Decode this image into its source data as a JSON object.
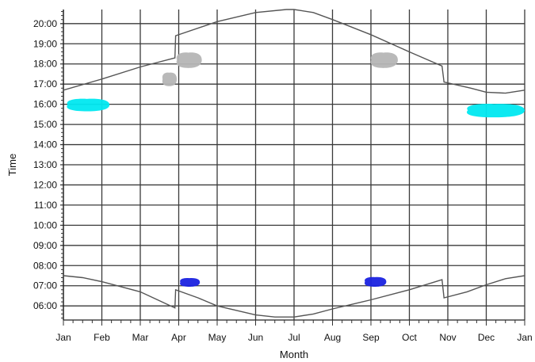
{
  "chart_data": {
    "type": "line",
    "title": "",
    "xlabel": "Month",
    "ylabel": "Time",
    "x_ticks": [
      "Jan",
      "Feb",
      "Mar",
      "Apr",
      "May",
      "Jun",
      "Jul",
      "Aug",
      "Sep",
      "Oct",
      "Nov",
      "Dec",
      "Jan"
    ],
    "y_ticks": [
      "06:00",
      "07:00",
      "08:00",
      "09:00",
      "10:00",
      "11:00",
      "12:00",
      "13:00",
      "14:00",
      "15:00",
      "16:00",
      "17:00",
      "18:00",
      "19:00",
      "20:00"
    ],
    "ylim": [
      5.3,
      20.7
    ],
    "xlim": [
      0,
      12
    ],
    "grid": true,
    "colors": {
      "grid": "#3a3a3a",
      "line": "#555555",
      "gray_blob": "#b5b5b5",
      "cyan_blob": "#00e8f0",
      "blue_blob": "#1a22e0"
    },
    "series": [
      {
        "points": [
          [
            0,
            16.7
          ],
          [
            1,
            17.25
          ],
          [
            2,
            17.85
          ],
          [
            2.9,
            18.3
          ],
          [
            2.92,
            19.4
          ],
          [
            4,
            20.1
          ],
          [
            5,
            20.55
          ],
          [
            5.8,
            20.7
          ],
          [
            6,
            20.7
          ],
          [
            6.5,
            20.55
          ],
          [
            7,
            20.2
          ],
          [
            8,
            19.45
          ],
          [
            9,
            18.6
          ],
          [
            9.85,
            17.9
          ],
          [
            9.9,
            17.1
          ],
          [
            10.6,
            16.8
          ],
          [
            11,
            16.6
          ],
          [
            11.5,
            16.55
          ],
          [
            12,
            16.7
          ]
        ]
      },
      {
        "points": [
          [
            0,
            7.5
          ],
          [
            0.5,
            7.4
          ],
          [
            1,
            7.2
          ],
          [
            2,
            6.7
          ],
          [
            2.9,
            5.9
          ],
          [
            2.92,
            6.8
          ],
          [
            3.5,
            6.4
          ],
          [
            4,
            6.0
          ],
          [
            5,
            5.55
          ],
          [
            5.5,
            5.45
          ],
          [
            6,
            5.45
          ],
          [
            6.5,
            5.6
          ],
          [
            7,
            5.85
          ],
          [
            8,
            6.3
          ],
          [
            9,
            6.8
          ],
          [
            9.85,
            7.3
          ],
          [
            9.9,
            6.4
          ],
          [
            10.5,
            6.7
          ],
          [
            11,
            7.05
          ],
          [
            11.5,
            7.35
          ],
          [
            12,
            7.5
          ]
        ]
      }
    ],
    "blobs": [
      {
        "color": "gray_blob",
        "x": [
          2.9,
          3.6
        ],
        "y": [
          17.8,
          18.6
        ]
      },
      {
        "color": "gray_blob",
        "x": [
          2.55,
          2.95
        ],
        "y": [
          16.9,
          17.6
        ]
      },
      {
        "color": "gray_blob",
        "x": [
          7.95,
          8.7
        ],
        "y": [
          17.8,
          18.6
        ]
      },
      {
        "color": "cyan_blob",
        "x": [
          0.02,
          1.2
        ],
        "y": [
          15.65,
          16.3
        ]
      },
      {
        "color": "cyan_blob",
        "x": [
          10.4,
          12.0
        ],
        "y": [
          15.35,
          16.05
        ]
      },
      {
        "color": "blue_blob",
        "x": [
          3.0,
          3.55
        ],
        "y": [
          6.95,
          7.4
        ]
      },
      {
        "color": "blue_blob",
        "x": [
          7.8,
          8.4
        ],
        "y": [
          6.95,
          7.45
        ]
      }
    ]
  }
}
